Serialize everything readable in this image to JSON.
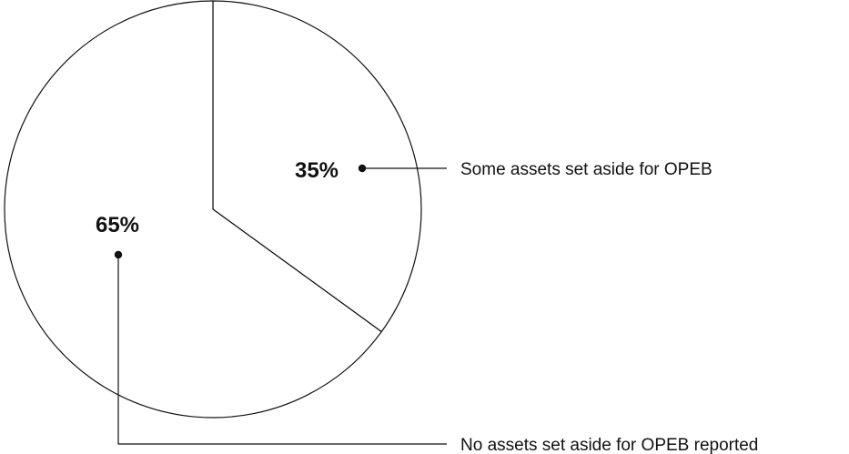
{
  "chart_data": {
    "type": "pie",
    "start_angle": "12 o'clock",
    "direction": "clockwise",
    "slices": [
      {
        "label": "Some assets set aside for OPEB",
        "value": 35,
        "value_label": "35%"
      },
      {
        "label": "No assets set aside for OPEB reported",
        "value": 65,
        "value_label": "65%"
      }
    ],
    "colors": {
      "fill": "#ffffff",
      "stroke": "#111111"
    },
    "legend": "callout lines"
  }
}
